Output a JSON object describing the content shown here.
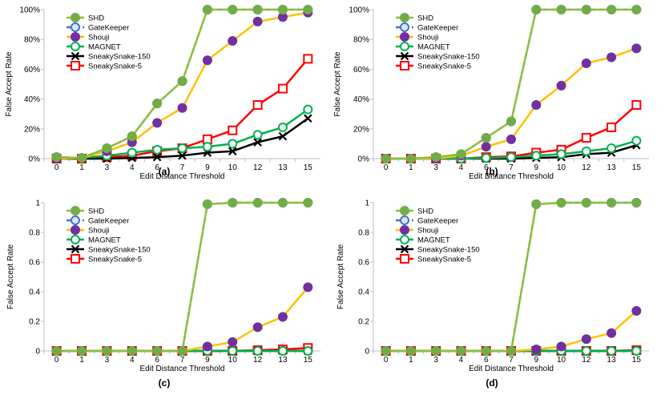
{
  "figure": {
    "x_categories": [
      "0",
      "1",
      "3",
      "4",
      "6",
      "7",
      "9",
      "10",
      "12",
      "13",
      "15"
    ],
    "xlabel": "Edit Distance Threshold",
    "ylabel": "False Accept Rate"
  },
  "series_styles": [
    {
      "name": "SHD",
      "line": "#8fbf3f",
      "marker_fill": "#70ad47",
      "marker_edge": "#70ad47",
      "marker": "circle",
      "dash": ""
    },
    {
      "name": "GateKeeper",
      "line": "#4472c4",
      "marker_fill": "#dce8f7",
      "marker_edge": "#4472c4",
      "marker": "circle",
      "dash": "6,4"
    },
    {
      "name": "Shouji",
      "line": "#ffc000",
      "marker_fill": "#7030a0",
      "marker_edge": "#7030a0",
      "marker": "circle",
      "dash": ""
    },
    {
      "name": "MAGNET",
      "line": "#00b050",
      "marker_fill": "#ffffff",
      "marker_edge": "#00b050",
      "marker": "circle",
      "dash": ""
    },
    {
      "name": "SneakySnake-150",
      "line": "#000000",
      "marker_fill": "#000000",
      "marker_edge": "#000000",
      "marker": "x",
      "dash": ""
    },
    {
      "name": "SneakySnake-5",
      "line": "#ff0000",
      "marker_fill": "#ffffff",
      "marker_edge": "#ff0000",
      "marker": "square",
      "dash": ""
    }
  ],
  "chart_data": [
    {
      "type": "line",
      "caption": "(a)",
      "categories": [
        "0",
        "1",
        "3",
        "4",
        "6",
        "7",
        "9",
        "10",
        "12",
        "13",
        "15"
      ],
      "xlabel": "Edit Distance Threshold",
      "ylabel": "False Accept Rate",
      "ylim": [
        0,
        1
      ],
      "yticks": [
        0,
        0.2,
        0.4,
        0.6,
        0.8,
        1
      ],
      "ytick_labels": [
        "0%",
        "20%",
        "40%",
        "60%",
        "80%",
        "100%"
      ],
      "legend": "top-left",
      "series": [
        {
          "name": "SHD",
          "values": [
            0.01,
            0.005,
            0.07,
            0.15,
            0.37,
            0.52,
            1.0,
            1.0,
            1.0,
            1.0,
            1.0
          ]
        },
        {
          "name": "GateKeeper",
          "values": [
            0.01,
            0.005,
            0.07,
            0.15,
            0.37,
            0.52,
            1.0,
            1.0,
            1.0,
            1.0,
            1.0
          ]
        },
        {
          "name": "Shouji",
          "values": [
            0.0,
            0.005,
            0.05,
            0.11,
            0.24,
            0.34,
            0.66,
            0.79,
            0.92,
            0.95,
            0.98
          ]
        },
        {
          "name": "MAGNET",
          "values": [
            0.01,
            0.005,
            0.02,
            0.04,
            0.06,
            0.07,
            0.08,
            0.1,
            0.16,
            0.21,
            0.33
          ]
        },
        {
          "name": "SneakySnake-150",
          "values": [
            0.0,
            0.0,
            0.0,
            0.005,
            0.01,
            0.02,
            0.04,
            0.05,
            0.11,
            0.15,
            0.27
          ]
        },
        {
          "name": "SneakySnake-5",
          "values": [
            0.0,
            0.0,
            0.01,
            0.02,
            0.05,
            0.07,
            0.13,
            0.19,
            0.36,
            0.47,
            0.67
          ]
        }
      ]
    },
    {
      "type": "line",
      "caption": "(b)",
      "categories": [
        "0",
        "1",
        "3",
        "4",
        "6",
        "7",
        "9",
        "10",
        "12",
        "13",
        "15"
      ],
      "xlabel": "Edit Distance Threshold",
      "ylabel": "False Accept Rate",
      "ylim": [
        0,
        1
      ],
      "yticks": [
        0,
        0.2,
        0.4,
        0.6,
        0.8,
        1
      ],
      "ytick_labels": [
        "0%",
        "20%",
        "40%",
        "60%",
        "80%",
        "100%"
      ],
      "legend": "top-left",
      "series": [
        {
          "name": "SHD",
          "values": [
            0.0,
            0.0,
            0.01,
            0.03,
            0.14,
            0.25,
            1.0,
            1.0,
            1.0,
            1.0,
            1.0
          ]
        },
        {
          "name": "GateKeeper",
          "values": [
            0.0,
            0.0,
            0.01,
            0.03,
            0.14,
            0.25,
            1.0,
            1.0,
            1.0,
            1.0,
            1.0
          ]
        },
        {
          "name": "Shouji",
          "values": [
            0.0,
            0.0,
            0.0,
            0.02,
            0.08,
            0.13,
            0.36,
            0.49,
            0.64,
            0.68,
            0.74
          ]
        },
        {
          "name": "MAGNET",
          "values": [
            0.0,
            0.0,
            0.0,
            0.0,
            0.005,
            0.01,
            0.02,
            0.03,
            0.05,
            0.07,
            0.12
          ]
        },
        {
          "name": "SneakySnake-150",
          "values": [
            0.0,
            0.0,
            0.0,
            0.0,
            0.0,
            0.0,
            0.005,
            0.01,
            0.03,
            0.04,
            0.09
          ]
        },
        {
          "name": "SneakySnake-5",
          "values": [
            0.0,
            0.0,
            0.0,
            0.0,
            0.01,
            0.015,
            0.04,
            0.06,
            0.14,
            0.21,
            0.36
          ]
        }
      ]
    },
    {
      "type": "line",
      "caption": "(c)",
      "categories": [
        "0",
        "1",
        "3",
        "4",
        "6",
        "7",
        "9",
        "10",
        "12",
        "13",
        "15"
      ],
      "xlabel": "Edit Distance Threshold",
      "ylabel": "False Accept Rate",
      "ylim": [
        0,
        1
      ],
      "yticks": [
        0,
        0.2,
        0.4,
        0.6,
        0.8,
        1
      ],
      "ytick_labels": [
        "0",
        "0.2",
        "0.4",
        "0.6",
        "0.8",
        "1"
      ],
      "legend": "top-left",
      "series": [
        {
          "name": "SHD",
          "values": [
            0.0,
            0.0,
            0.0,
            0.0,
            0.0,
            0.0,
            0.99,
            1.0,
            1.0,
            1.0,
            1.0
          ]
        },
        {
          "name": "GateKeeper",
          "values": [
            0.0,
            0.0,
            0.0,
            0.0,
            0.0,
            0.0,
            0.99,
            1.0,
            1.0,
            1.0,
            1.0
          ]
        },
        {
          "name": "Shouji",
          "values": [
            0.0,
            0.0,
            0.0,
            0.0,
            0.0,
            0.0,
            0.03,
            0.06,
            0.16,
            0.23,
            0.43
          ]
        },
        {
          "name": "MAGNET",
          "values": [
            0.0,
            0.0,
            0.0,
            0.0,
            0.0,
            0.0,
            0.0,
            0.0,
            0.0,
            0.0,
            0.0
          ]
        },
        {
          "name": "SneakySnake-150",
          "values": [
            0.0,
            0.0,
            0.0,
            0.0,
            0.0,
            0.0,
            0.0,
            0.0,
            0.0,
            0.0,
            0.0
          ]
        },
        {
          "name": "SneakySnake-5",
          "values": [
            0.0,
            0.0,
            0.0,
            0.0,
            0.0,
            0.0,
            0.0,
            0.0,
            0.005,
            0.01,
            0.02
          ]
        }
      ]
    },
    {
      "type": "line",
      "caption": "(d)",
      "categories": [
        "0",
        "1",
        "3",
        "4",
        "6",
        "7",
        "9",
        "10",
        "12",
        "13",
        "15"
      ],
      "xlabel": "Edit Distance Threshold",
      "ylabel": "False Accept Rate",
      "ylim": [
        0,
        1
      ],
      "yticks": [
        0,
        0.2,
        0.4,
        0.6,
        0.8,
        1
      ],
      "ytick_labels": [
        "0",
        "0.2",
        "0.4",
        "0.6",
        "0.8",
        "1"
      ],
      "legend": "top-left",
      "series": [
        {
          "name": "SHD",
          "values": [
            0.0,
            0.0,
            0.0,
            0.0,
            0.0,
            0.0,
            0.99,
            1.0,
            1.0,
            1.0,
            1.0
          ]
        },
        {
          "name": "GateKeeper",
          "values": [
            0.0,
            0.0,
            0.0,
            0.0,
            0.0,
            0.0,
            0.99,
            1.0,
            1.0,
            1.0,
            1.0
          ]
        },
        {
          "name": "Shouji",
          "values": [
            0.0,
            0.0,
            0.0,
            0.0,
            0.0,
            0.0,
            0.01,
            0.03,
            0.08,
            0.12,
            0.27
          ]
        },
        {
          "name": "MAGNET",
          "values": [
            0.0,
            0.0,
            0.0,
            0.0,
            0.0,
            0.0,
            0.0,
            0.0,
            0.0,
            0.0,
            0.0
          ]
        },
        {
          "name": "SneakySnake-150",
          "values": [
            0.0,
            0.0,
            0.0,
            0.0,
            0.0,
            0.0,
            0.0,
            0.0,
            0.0,
            0.0,
            0.0
          ]
        },
        {
          "name": "SneakySnake-5",
          "values": [
            0.0,
            0.0,
            0.0,
            0.0,
            0.0,
            0.0,
            0.0,
            0.0,
            0.0,
            0.0,
            0.005
          ]
        }
      ]
    }
  ]
}
